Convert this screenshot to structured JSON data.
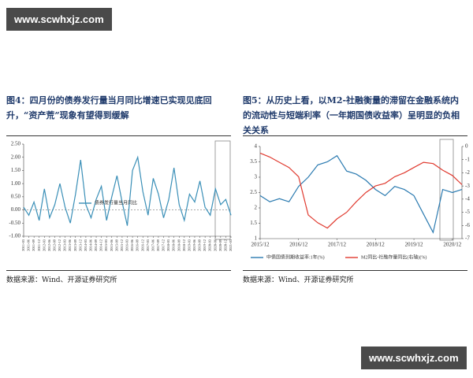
{
  "watermark_top": "www.scwhxjz.com",
  "watermark_bottom": "www.scwhxjz.com",
  "figures": [
    {
      "title": "图4：四月份的债券发行量当月同比增速已实现见底回升，“资产荒”现象有望得到缓解",
      "source": "数据来源：Wind、开源证券研究所"
    },
    {
      "title": "图5：从历史上看，以M2-社融衡量的滞留在金融系统内的流动性与短端利率（一年期国债收益率）呈明显的负相关关系",
      "source": "数据来源：Wind、开源证券研究所"
    }
  ],
  "chart_data": [
    {
      "type": "line",
      "categories": [
        "2011-03",
        "2011-06",
        "2011-09",
        "2011-12",
        "2012-03",
        "2012-06",
        "2012-09",
        "2012-12",
        "2013-03",
        "2013-06",
        "2013-09",
        "2013-12",
        "2014-03",
        "2014-06",
        "2014-09",
        "2014-12",
        "2015-03",
        "2015-06",
        "2015-09",
        "2015-12",
        "2016-03",
        "2016-06",
        "2016-09",
        "2016-12",
        "2017-03",
        "2017-06",
        "2017-09",
        "2017-12",
        "2018-03",
        "2018-06",
        "2018-09",
        "2018-12",
        "2019-03",
        "2019-06",
        "2019-09",
        "2019-12",
        "2020-03",
        "2020-06",
        "2020-09",
        "2020-12",
        "2021-03"
      ],
      "series": [
        {
          "name": "债券发行量当月同比",
          "color": "#3a8fb7",
          "values": [
            0.1,
            -0.2,
            0.3,
            -0.4,
            0.8,
            -0.3,
            0.2,
            1.0,
            0.1,
            -0.5,
            0.6,
            1.9,
            0.2,
            -0.3,
            0.4,
            0.9,
            -0.4,
            0.5,
            1.3,
            0.3,
            -0.6,
            1.5,
            2.0,
            0.7,
            -0.2,
            1.2,
            0.6,
            -0.3,
            0.4,
            1.6,
            0.2,
            -0.4,
            0.6,
            0.3,
            1.1,
            0.1,
            -0.2,
            0.8,
            0.2,
            0.4,
            -0.2
          ]
        }
      ],
      "ylim": [
        -1,
        2.5
      ],
      "yticks": [
        {
          "value": -1,
          "label": "-1.00"
        },
        {
          "value": -0.5,
          "label": "-0.50"
        },
        {
          "value": 0,
          "label": "0.00"
        },
        {
          "value": 0.5,
          "label": "0.50"
        },
        {
          "value": 1,
          "label": "1.00"
        },
        {
          "value": 1.5,
          "label": "1.50"
        },
        {
          "value": 2,
          "label": "2.00"
        },
        {
          "value": 2.5,
          "label": "2.50"
        }
      ],
      "baseline": 0,
      "legend": "inside-bottom"
    },
    {
      "type": "line",
      "categories": [
        "2015/12",
        null,
        null,
        null,
        "2016/12",
        null,
        null,
        null,
        "2017/12",
        null,
        null,
        null,
        "2018/12",
        null,
        null,
        null,
        "2019/12",
        null,
        null,
        null,
        "2020/12",
        null
      ],
      "series": [
        {
          "name": "中债国债到期收益率:1年(%)",
          "color": "#2a7ab0",
          "values": [
            2.4,
            2.2,
            2.3,
            2.2,
            2.7,
            3.0,
            3.4,
            3.5,
            3.7,
            3.2,
            3.1,
            2.9,
            2.6,
            2.4,
            2.7,
            2.6,
            2.4,
            1.8,
            1.2,
            2.6,
            2.5,
            2.6
          ]
        },
        {
          "name": "M2同比-社融存量同比(右轴)(%)",
          "color": "#e03a2f",
          "axis": "y2",
          "values": [
            -0.5,
            -0.8,
            -1.2,
            -1.6,
            -2.3,
            -5.2,
            -5.8,
            -6.2,
            -5.5,
            -5.0,
            -4.2,
            -3.5,
            -3.0,
            -2.8,
            -2.3,
            -2.0,
            -1.6,
            -1.2,
            -1.3,
            -1.8,
            -2.2,
            -2.9
          ]
        }
      ],
      "ylim": [
        1,
        4
      ],
      "yticks": [
        1,
        1.5,
        2,
        2.5,
        3,
        3.5,
        4
      ],
      "y2lim": [
        -7,
        0
      ],
      "y2ticks": [
        0,
        -1,
        -2,
        -3,
        -4,
        -5,
        -6,
        -7
      ],
      "legend": "bottom"
    }
  ]
}
